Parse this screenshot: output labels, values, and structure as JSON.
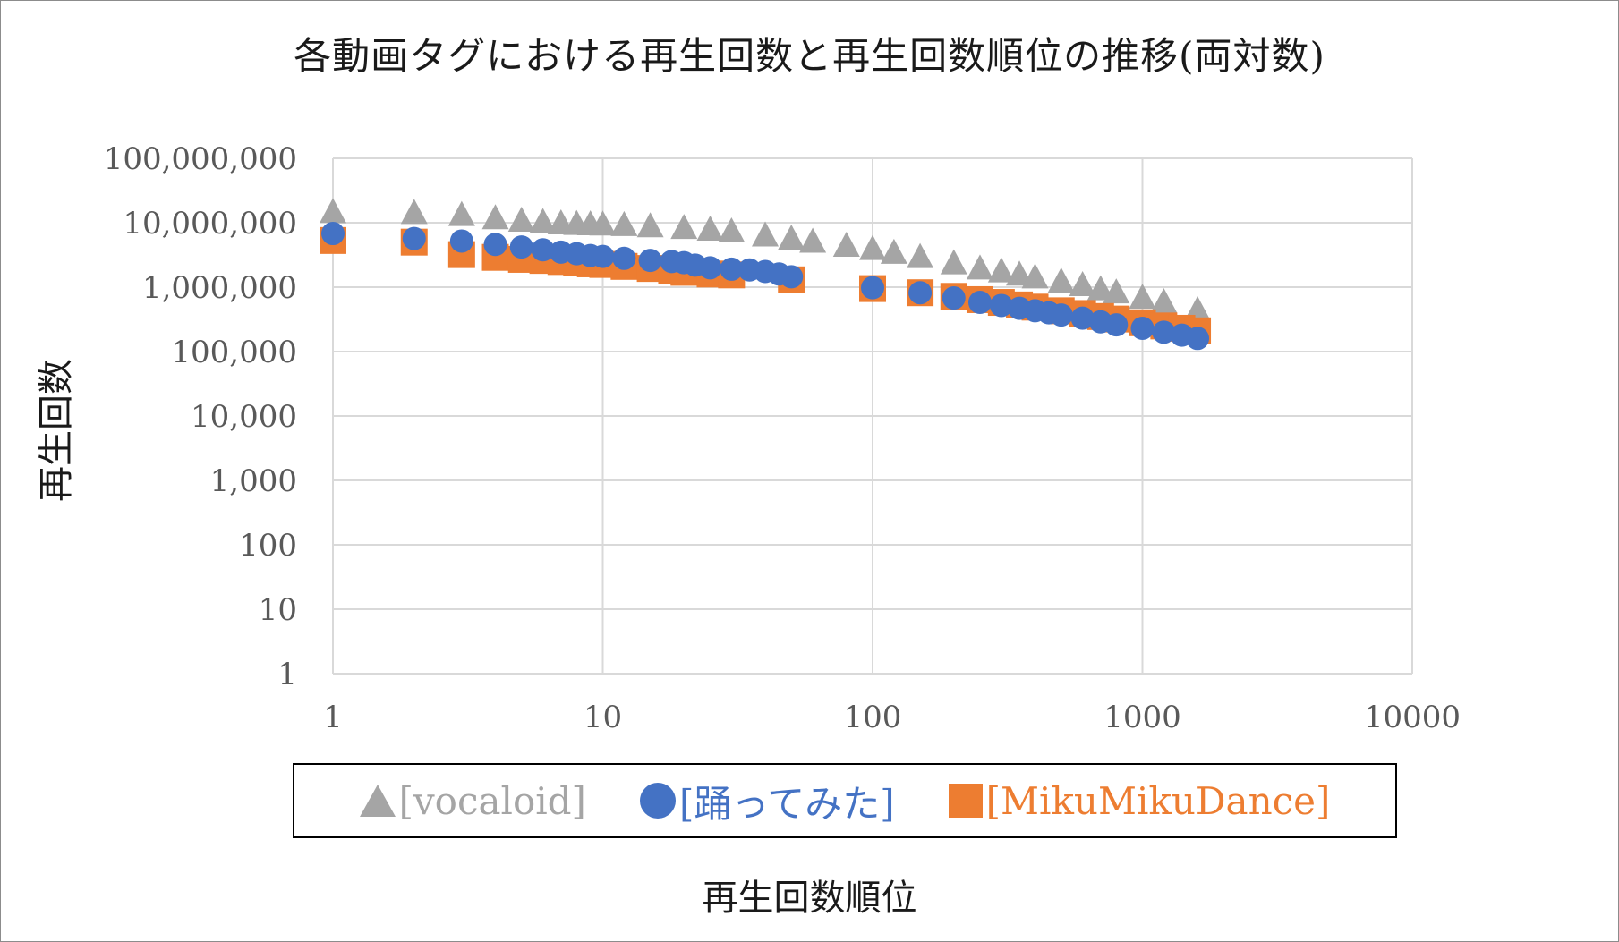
{
  "chart_data": {
    "type": "scatter",
    "title": "各動画タグにおける再生回数と再生回数順位の推移(両対数)",
    "xlabel": "再生回数順位",
    "ylabel": "再生回数",
    "x_scale": "log",
    "y_scale": "log",
    "xlim": [
      1,
      10000
    ],
    "ylim": [
      1,
      100000000
    ],
    "grid": true,
    "legend_position": "bottom",
    "x_tick_labels": [
      "1",
      "10",
      "100",
      "1000",
      "10000"
    ],
    "y_tick_labels": [
      "1",
      "10",
      "100",
      "1,000",
      "10,000",
      "100,000",
      "1,000,000",
      "10,000,000",
      "100,000,000"
    ],
    "series": [
      {
        "name": "[vocaloid]",
        "marker": "triangle",
        "color": "#a5a5a5",
        "x": [
          1,
          2,
          3,
          4,
          5,
          6,
          7,
          8,
          9,
          10,
          12,
          15,
          20,
          25,
          30,
          40,
          50,
          60,
          80,
          100,
          120,
          150,
          200,
          250,
          300,
          350,
          400,
          500,
          600,
          700,
          800,
          1000,
          1200,
          1600
        ],
        "y": [
          15000000,
          14500000,
          13500000,
          12000000,
          11000000,
          10500000,
          10000000,
          9800000,
          9700000,
          9600000,
          9400000,
          9000000,
          8500000,
          8000000,
          7500000,
          6500000,
          5800000,
          5200000,
          4500000,
          4000000,
          3500000,
          3000000,
          2400000,
          2000000,
          1800000,
          1600000,
          1450000,
          1250000,
          1100000,
          950000,
          850000,
          700000,
          600000,
          450000
        ]
      },
      {
        "name": "[踊ってみた]",
        "marker": "circle",
        "color": "#4472c4",
        "x": [
          1,
          2,
          3,
          4,
          5,
          6,
          7,
          8,
          9,
          10,
          12,
          15,
          18,
          20,
          22,
          25,
          30,
          35,
          40,
          45,
          50,
          100,
          150,
          200,
          250,
          300,
          350,
          400,
          450,
          500,
          600,
          700,
          800,
          1000,
          1200,
          1400,
          1600
        ],
        "y": [
          6800000,
          5700000,
          5200000,
          4600000,
          4200000,
          3800000,
          3500000,
          3300000,
          3100000,
          3000000,
          2800000,
          2600000,
          2500000,
          2400000,
          2200000,
          2000000,
          1900000,
          1850000,
          1750000,
          1600000,
          1450000,
          980000,
          820000,
          680000,
          580000,
          520000,
          470000,
          430000,
          400000,
          370000,
          330000,
          290000,
          260000,
          230000,
          200000,
          180000,
          160000
        ]
      },
      {
        "name": "[MikuMikuDance]",
        "marker": "square",
        "color": "#ed7d31",
        "x": [
          1,
          2,
          3,
          4,
          5,
          6,
          7,
          8,
          9,
          10,
          12,
          15,
          18,
          20,
          25,
          30,
          50,
          100,
          150,
          200,
          250,
          300,
          350,
          400,
          500,
          600,
          700,
          800,
          1000,
          1200,
          1400,
          1600
        ],
        "y": [
          5300000,
          5000000,
          3200000,
          2900000,
          2700000,
          2600000,
          2500000,
          2400000,
          2300000,
          2250000,
          2100000,
          1950000,
          1800000,
          1700000,
          1600000,
          1550000,
          1300000,
          950000,
          820000,
          720000,
          640000,
          580000,
          530000,
          490000,
          430000,
          390000,
          350000,
          320000,
          280000,
          250000,
          230000,
          210000
        ]
      }
    ]
  },
  "legend": {
    "items": [
      {
        "label": "[vocaloid]",
        "color": "#a5a5a5"
      },
      {
        "label": "[踊ってみた]",
        "color": "#4472c4"
      },
      {
        "label": "[MikuMikuDance]",
        "color": "#ed7d31"
      }
    ]
  }
}
